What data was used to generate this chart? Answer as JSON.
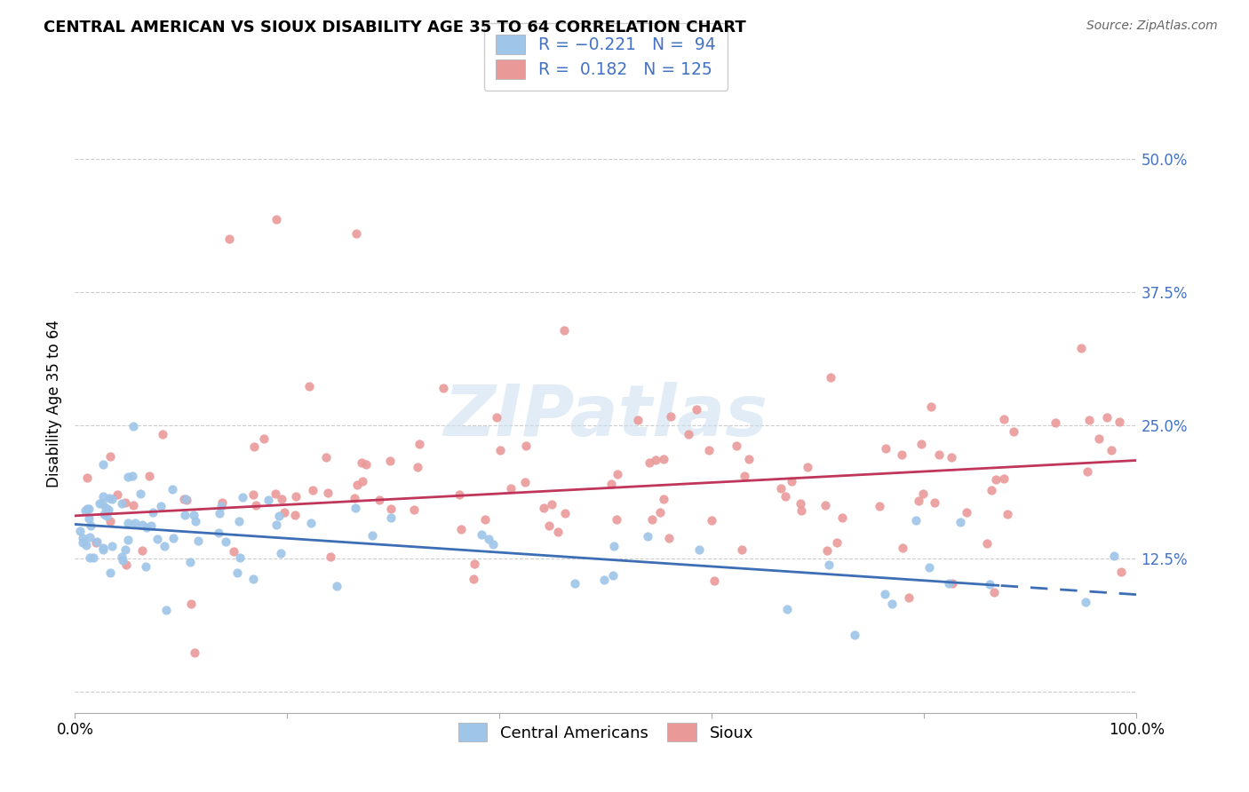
{
  "title": "CENTRAL AMERICAN VS SIOUX DISABILITY AGE 35 TO 64 CORRELATION CHART",
  "source": "Source: ZipAtlas.com",
  "ylabel": "Disability Age 35 to 64",
  "xlim": [
    0.0,
    1.0
  ],
  "ylim": [
    -0.02,
    0.56
  ],
  "ytick_vals": [
    0.0,
    0.125,
    0.25,
    0.375,
    0.5
  ],
  "ytick_labels": [
    "",
    "12.5%",
    "25.0%",
    "37.5%",
    "50.0%"
  ],
  "xtick_vals": [
    0.0,
    0.2,
    0.4,
    0.6,
    0.8,
    1.0
  ],
  "xtick_labels": [
    "0.0%",
    "",
    "",
    "",
    "",
    "100.0%"
  ],
  "watermark": "ZIPatlas",
  "blue_color": "#9fc5e8",
  "pink_color": "#ea9999",
  "blue_line_color": "#3d6eb5",
  "pink_line_color": "#c0365a",
  "blue_R": -0.221,
  "blue_N": 94,
  "pink_R": 0.182,
  "pink_N": 125,
  "legend_label_blue": "Central Americans",
  "legend_label_pink": "Sioux",
  "blue_trend_start_y": 0.157,
  "blue_trend_end_y": 0.091,
  "pink_trend_start_y": 0.165,
  "pink_trend_end_y": 0.217,
  "blue_dash_cutoff": 0.87
}
